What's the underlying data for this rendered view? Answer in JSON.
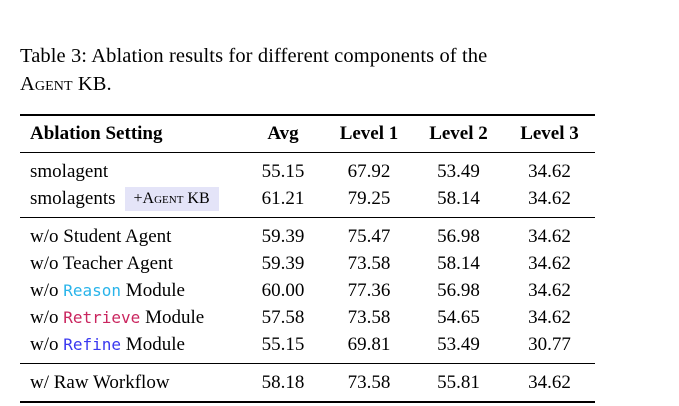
{
  "caption": {
    "line1": "Table 3: Ablation results for different components of the",
    "smallcaps_word": "Agent",
    "line2_rest": " KB."
  },
  "colors": {
    "reason_keyword": "#29b4ea",
    "retrieve_keyword": "#ca265f",
    "refine_keyword": "#3a38f0",
    "badge_background": "#e4e4f8"
  },
  "table": {
    "headers": [
      "Ablation Setting",
      "Avg",
      "Level 1",
      "Level 2",
      "Level 3"
    ],
    "rows": [
      {
        "label": "smolagent",
        "values": [
          "55.15",
          "67.92",
          "53.49",
          "34.62"
        ]
      },
      {
        "label": "smolagents",
        "badge": {
          "plus": "+",
          "smallcaps_word": "Agent",
          "rest": " KB"
        },
        "values": [
          "61.21",
          "79.25",
          "58.14",
          "34.62"
        ]
      },
      {
        "label": "w/o Student Agent",
        "values": [
          "59.39",
          "75.47",
          "56.98",
          "34.62"
        ]
      },
      {
        "label": "w/o Teacher Agent",
        "values": [
          "59.39",
          "73.58",
          "58.14",
          "34.62"
        ]
      },
      {
        "label_prefix": "w/o ",
        "keyword": "Reason",
        "label_suffix": " Module",
        "values": [
          "60.00",
          "77.36",
          "56.98",
          "34.62"
        ]
      },
      {
        "label_prefix": "w/o ",
        "keyword": "Retrieve",
        "label_suffix": " Module",
        "values": [
          "57.58",
          "73.58",
          "54.65",
          "34.62"
        ]
      },
      {
        "label_prefix": "w/o ",
        "keyword": "Refine",
        "label_suffix": " Module",
        "values": [
          "55.15",
          "69.81",
          "53.49",
          "30.77"
        ]
      },
      {
        "label": "w/ Raw Workflow",
        "values": [
          "58.18",
          "73.58",
          "55.81",
          "34.62"
        ]
      }
    ]
  }
}
